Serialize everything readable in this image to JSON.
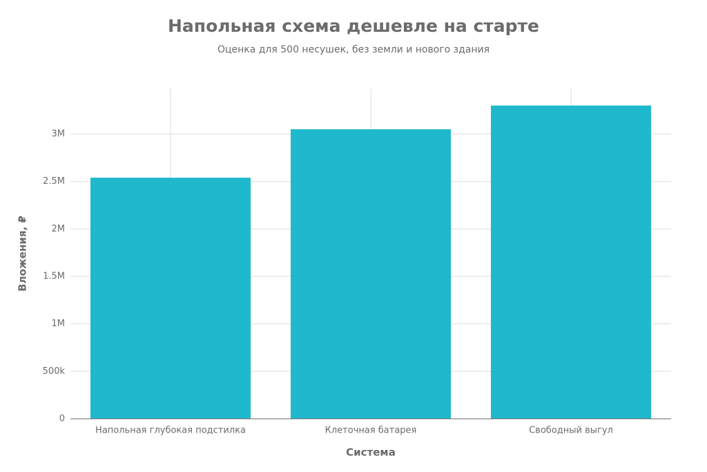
{
  "chart_data": {
    "type": "bar",
    "title": "Напольная схема дешевле на старте",
    "subtitle": "Оценка для 500 несушек, без земли и нового здания",
    "x_label": "Система",
    "y_label": "Вложения, ₽",
    "categories": [
      "Напольная глубокая подстилка",
      "Клеточная батарея",
      "Свободный выгул"
    ],
    "values": [
      2540000,
      3050000,
      3300000
    ],
    "color": "#1fb8cc",
    "ylim": [
      0,
      3480000
    ],
    "yticks": [
      0,
      {
        "value": 500000,
        "label": "500k"
      },
      {
        "value": 1000000,
        "label": "1M"
      },
      {
        "value": 1500000,
        "label": "1.5M"
      },
      {
        "value": 2000000,
        "label": "2M"
      },
      {
        "value": 2500000,
        "label": "2.5M"
      },
      {
        "value": 3000000,
        "label": "3M"
      }
    ],
    "grid": true
  }
}
